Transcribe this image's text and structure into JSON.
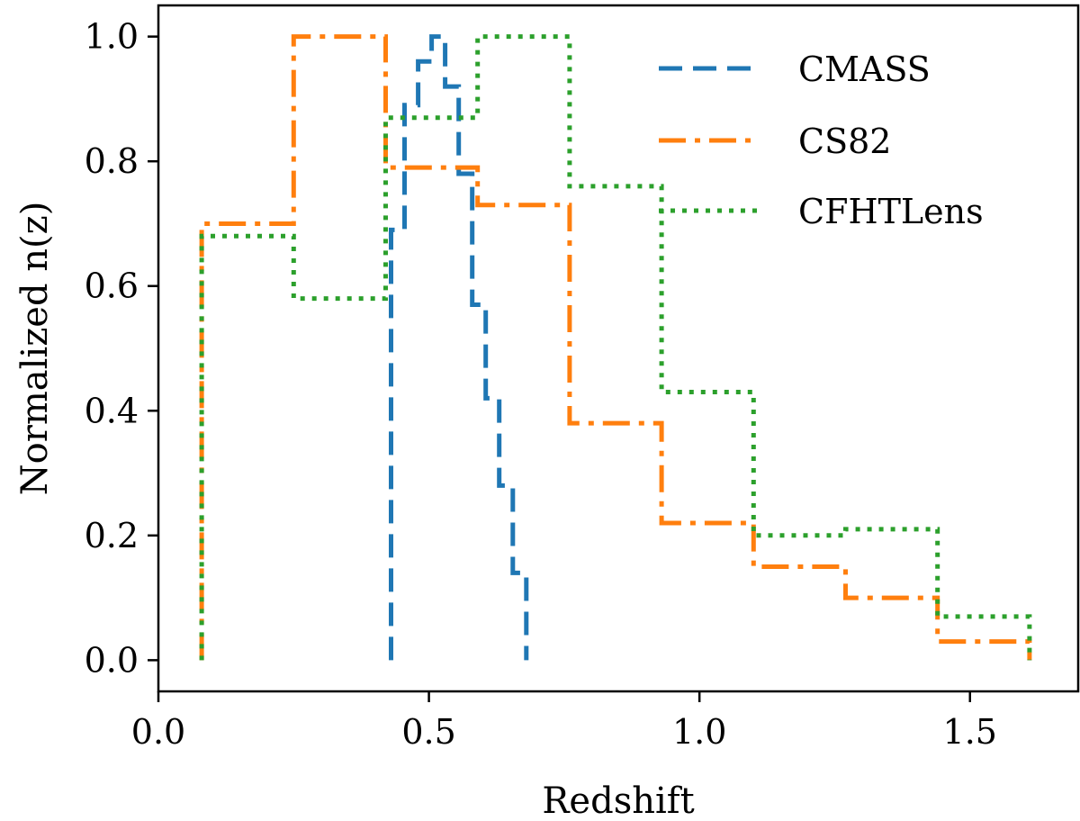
{
  "chart_data": {
    "type": "line",
    "title": "",
    "xlabel": "Redshift",
    "ylabel": "Normalized n(z)",
    "xlim": [
      0.0,
      1.7
    ],
    "ylim": [
      -0.05,
      1.05
    ],
    "xticks": [
      0.0,
      0.5,
      1.0,
      1.5
    ],
    "yticks": [
      0.0,
      0.2,
      0.4,
      0.6,
      0.8,
      1.0
    ],
    "xtick_labels": [
      "0.0",
      "0.5",
      "1.0",
      "1.5"
    ],
    "ytick_labels": [
      "0.0",
      "0.2",
      "0.4",
      "0.6",
      "0.8",
      "1.0"
    ],
    "grid": false,
    "legend_position": "top-right",
    "series": [
      {
        "name": "CMASS",
        "color": "#1f77b4",
        "style": "dashed",
        "edges": [
          0.43,
          0.455,
          0.48,
          0.505,
          0.53,
          0.555,
          0.58,
          0.605,
          0.63,
          0.655,
          0.68
        ],
        "values": [
          0.69,
          0.89,
          0.96,
          1.0,
          0.92,
          0.78,
          0.57,
          0.42,
          0.28,
          0.14
        ]
      },
      {
        "name": "CS82",
        "color": "#ff7f0e",
        "style": "dashdot",
        "edges": [
          0.08,
          0.25,
          0.42,
          0.59,
          0.76,
          0.93,
          1.1,
          1.27,
          1.44,
          1.61
        ],
        "values": [
          0.7,
          1.0,
          0.79,
          0.73,
          0.38,
          0.22,
          0.15,
          0.1,
          0.03
        ]
      },
      {
        "name": "CFHTLens",
        "color": "#2ca02c",
        "style": "dotted",
        "edges": [
          0.08,
          0.25,
          0.42,
          0.59,
          0.76,
          0.93,
          1.1,
          1.27,
          1.44,
          1.61
        ],
        "values": [
          0.68,
          0.58,
          0.87,
          1.0,
          0.76,
          0.43,
          0.2,
          0.21,
          0.07
        ]
      }
    ]
  }
}
